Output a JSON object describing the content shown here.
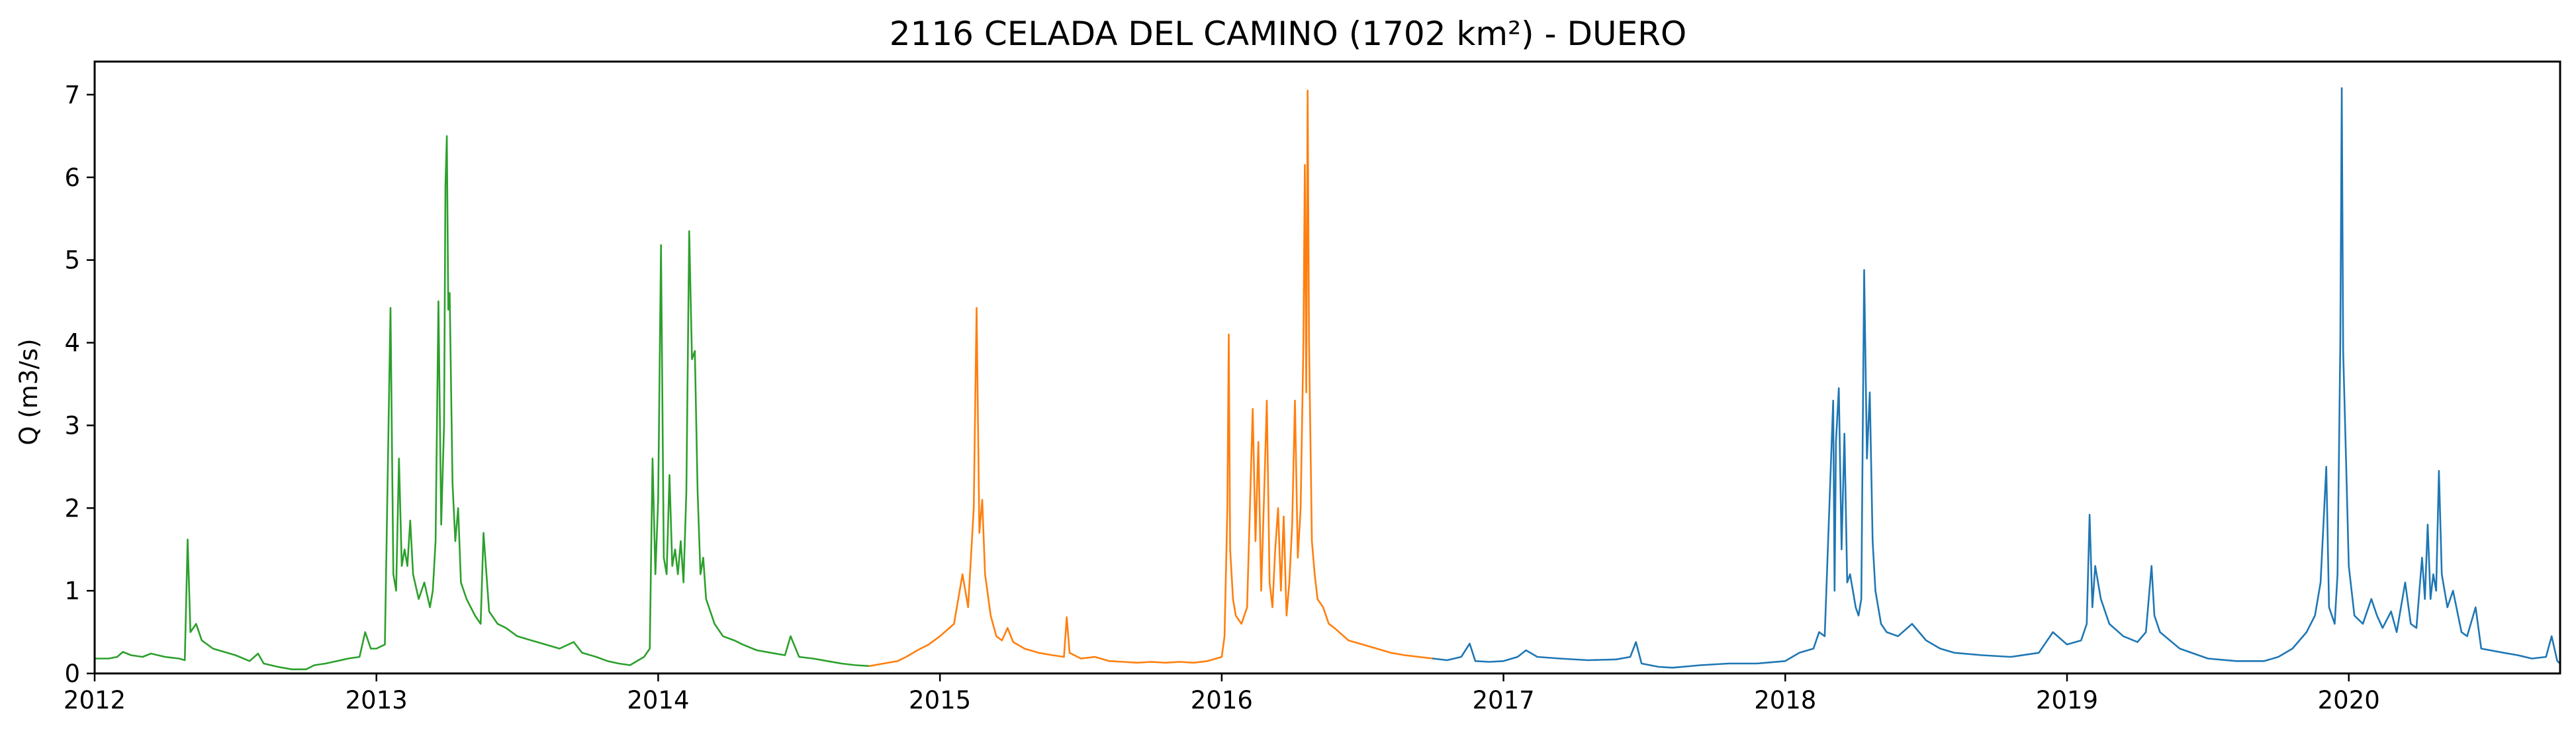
{
  "chart_data": {
    "type": "line",
    "title": "2116 CELADA DEL CAMINO (1702 km²) - DUERO",
    "xlabel": "",
    "ylabel": "Q (m3/s)",
    "xlim": [
      2012.0,
      2020.75
    ],
    "ylim": [
      0,
      7.4
    ],
    "x_ticks": [
      "2012",
      "2013",
      "2014",
      "2015",
      "2016",
      "2017",
      "2018",
      "2019",
      "2020"
    ],
    "y_ticks": [
      "0",
      "1",
      "2",
      "3",
      "4",
      "5",
      "6",
      "7"
    ],
    "grid": false,
    "legend": "none",
    "series": [
      {
        "color": "#2ca02c",
        "points": [
          [
            2012.0,
            0.18
          ],
          [
            2012.05,
            0.18
          ],
          [
            2012.08,
            0.2
          ],
          [
            2012.1,
            0.26
          ],
          [
            2012.13,
            0.22
          ],
          [
            2012.17,
            0.2
          ],
          [
            2012.2,
            0.24
          ],
          [
            2012.25,
            0.2
          ],
          [
            2012.3,
            0.18
          ],
          [
            2012.32,
            0.16
          ],
          [
            2012.33,
            1.62
          ],
          [
            2012.34,
            0.5
          ],
          [
            2012.36,
            0.6
          ],
          [
            2012.38,
            0.4
          ],
          [
            2012.42,
            0.3
          ],
          [
            2012.46,
            0.26
          ],
          [
            2012.5,
            0.22
          ],
          [
            2012.55,
            0.15
          ],
          [
            2012.58,
            0.24
          ],
          [
            2012.6,
            0.12
          ],
          [
            2012.65,
            0.08
          ],
          [
            2012.7,
            0.05
          ],
          [
            2012.75,
            0.05
          ],
          [
            2012.78,
            0.1
          ],
          [
            2012.82,
            0.12
          ],
          [
            2012.86,
            0.15
          ],
          [
            2012.9,
            0.18
          ],
          [
            2012.94,
            0.2
          ],
          [
            2012.96,
            0.5
          ],
          [
            2012.98,
            0.3
          ],
          [
            2013.0,
            0.3
          ],
          [
            2013.03,
            0.35
          ],
          [
            2013.05,
            4.42
          ],
          [
            2013.06,
            1.2
          ],
          [
            2013.07,
            1.0
          ],
          [
            2013.08,
            2.6
          ],
          [
            2013.09,
            1.3
          ],
          [
            2013.1,
            1.5
          ],
          [
            2013.11,
            1.3
          ],
          [
            2013.12,
            1.85
          ],
          [
            2013.13,
            1.2
          ],
          [
            2013.15,
            0.9
          ],
          [
            2013.17,
            1.1
          ],
          [
            2013.19,
            0.8
          ],
          [
            2013.2,
            1.0
          ],
          [
            2013.21,
            1.6
          ],
          [
            2013.22,
            4.5
          ],
          [
            2013.23,
            1.8
          ],
          [
            2013.24,
            3.0
          ],
          [
            2013.245,
            5.9
          ],
          [
            2013.25,
            6.5
          ],
          [
            2013.255,
            4.4
          ],
          [
            2013.26,
            4.6
          ],
          [
            2013.27,
            2.3
          ],
          [
            2013.28,
            1.6
          ],
          [
            2013.29,
            2.0
          ],
          [
            2013.3,
            1.1
          ],
          [
            2013.32,
            0.9
          ],
          [
            2013.35,
            0.7
          ],
          [
            2013.37,
            0.6
          ],
          [
            2013.38,
            1.7
          ],
          [
            2013.4,
            0.75
          ],
          [
            2013.43,
            0.6
          ],
          [
            2013.46,
            0.55
          ],
          [
            2013.5,
            0.45
          ],
          [
            2013.55,
            0.4
          ],
          [
            2013.6,
            0.35
          ],
          [
            2013.65,
            0.3
          ],
          [
            2013.7,
            0.38
          ],
          [
            2013.73,
            0.25
          ],
          [
            2013.78,
            0.2
          ],
          [
            2013.82,
            0.15
          ],
          [
            2013.86,
            0.12
          ],
          [
            2013.9,
            0.1
          ],
          [
            2013.95,
            0.2
          ],
          [
            2013.97,
            0.3
          ],
          [
            2013.98,
            2.6
          ],
          [
            2013.99,
            1.2
          ],
          [
            2014.0,
            2.1
          ],
          [
            2014.01,
            5.18
          ],
          [
            2014.02,
            1.4
          ],
          [
            2014.03,
            1.2
          ],
          [
            2014.04,
            2.4
          ],
          [
            2014.05,
            1.3
          ],
          [
            2014.06,
            1.5
          ],
          [
            2014.07,
            1.2
          ],
          [
            2014.08,
            1.6
          ],
          [
            2014.09,
            1.1
          ],
          [
            2014.1,
            2.2
          ],
          [
            2014.11,
            5.35
          ],
          [
            2014.12,
            3.8
          ],
          [
            2014.13,
            3.9
          ],
          [
            2014.14,
            2.2
          ],
          [
            2014.15,
            1.2
          ],
          [
            2014.16,
            1.4
          ],
          [
            2014.17,
            0.9
          ],
          [
            2014.2,
            0.6
          ],
          [
            2014.23,
            0.45
          ],
          [
            2014.27,
            0.4
          ],
          [
            2014.3,
            0.35
          ],
          [
            2014.35,
            0.28
          ],
          [
            2014.4,
            0.25
          ],
          [
            2014.45,
            0.22
          ],
          [
            2014.47,
            0.45
          ],
          [
            2014.5,
            0.2
          ],
          [
            2014.55,
            0.18
          ],
          [
            2014.6,
            0.15
          ],
          [
            2014.65,
            0.12
          ],
          [
            2014.7,
            0.1
          ],
          [
            2014.75,
            0.09
          ]
        ]
      },
      {
        "color": "#ff7f0e",
        "points": [
          [
            2014.75,
            0.09
          ],
          [
            2014.8,
            0.12
          ],
          [
            2014.85,
            0.15
          ],
          [
            2014.88,
            0.2
          ],
          [
            2014.92,
            0.28
          ],
          [
            2014.96,
            0.35
          ],
          [
            2015.0,
            0.45
          ],
          [
            2015.05,
            0.6
          ],
          [
            2015.08,
            1.2
          ],
          [
            2015.1,
            0.8
          ],
          [
            2015.12,
            2.0
          ],
          [
            2015.13,
            4.42
          ],
          [
            2015.14,
            1.7
          ],
          [
            2015.15,
            2.1
          ],
          [
            2015.16,
            1.2
          ],
          [
            2015.18,
            0.7
          ],
          [
            2015.2,
            0.45
          ],
          [
            2015.22,
            0.4
          ],
          [
            2015.24,
            0.55
          ],
          [
            2015.26,
            0.38
          ],
          [
            2015.3,
            0.3
          ],
          [
            2015.35,
            0.25
          ],
          [
            2015.4,
            0.22
          ],
          [
            2015.44,
            0.2
          ],
          [
            2015.45,
            0.68
          ],
          [
            2015.46,
            0.25
          ],
          [
            2015.5,
            0.18
          ],
          [
            2015.55,
            0.2
          ],
          [
            2015.6,
            0.15
          ],
          [
            2015.65,
            0.14
          ],
          [
            2015.7,
            0.13
          ],
          [
            2015.75,
            0.14
          ],
          [
            2015.8,
            0.13
          ],
          [
            2015.85,
            0.14
          ],
          [
            2015.9,
            0.13
          ],
          [
            2015.95,
            0.15
          ],
          [
            2016.0,
            0.2
          ],
          [
            2016.01,
            0.45
          ],
          [
            2016.02,
            2.0
          ],
          [
            2016.025,
            4.1
          ],
          [
            2016.03,
            1.5
          ],
          [
            2016.04,
            0.9
          ],
          [
            2016.05,
            0.7
          ],
          [
            2016.07,
            0.6
          ],
          [
            2016.09,
            0.8
          ],
          [
            2016.11,
            3.2
          ],
          [
            2016.12,
            1.6
          ],
          [
            2016.13,
            2.8
          ],
          [
            2016.14,
            1.0
          ],
          [
            2016.15,
            2.1
          ],
          [
            2016.16,
            3.3
          ],
          [
            2016.17,
            1.1
          ],
          [
            2016.18,
            0.8
          ],
          [
            2016.19,
            1.5
          ],
          [
            2016.2,
            2.0
          ],
          [
            2016.21,
            1.0
          ],
          [
            2016.22,
            1.9
          ],
          [
            2016.23,
            0.7
          ],
          [
            2016.24,
            1.1
          ],
          [
            2016.25,
            1.8
          ],
          [
            2016.26,
            3.3
          ],
          [
            2016.27,
            1.4
          ],
          [
            2016.28,
            2.0
          ],
          [
            2016.29,
            4.0
          ],
          [
            2016.295,
            6.15
          ],
          [
            2016.3,
            3.4
          ],
          [
            2016.305,
            7.05
          ],
          [
            2016.31,
            4.0
          ],
          [
            2016.32,
            1.6
          ],
          [
            2016.33,
            1.2
          ],
          [
            2016.34,
            0.9
          ],
          [
            2016.36,
            0.8
          ],
          [
            2016.38,
            0.6
          ],
          [
            2016.4,
            0.55
          ],
          [
            2016.45,
            0.4
          ],
          [
            2016.5,
            0.35
          ],
          [
            2016.55,
            0.3
          ],
          [
            2016.6,
            0.25
          ],
          [
            2016.65,
            0.22
          ],
          [
            2016.7,
            0.2
          ],
          [
            2016.75,
            0.18
          ]
        ]
      },
      {
        "color": "#1f77b4",
        "points": [
          [
            2016.75,
            0.18
          ],
          [
            2016.8,
            0.16
          ],
          [
            2016.85,
            0.2
          ],
          [
            2016.88,
            0.36
          ],
          [
            2016.9,
            0.15
          ],
          [
            2016.95,
            0.14
          ],
          [
            2017.0,
            0.15
          ],
          [
            2017.05,
            0.2
          ],
          [
            2017.08,
            0.28
          ],
          [
            2017.12,
            0.2
          ],
          [
            2017.2,
            0.18
          ],
          [
            2017.3,
            0.16
          ],
          [
            2017.4,
            0.17
          ],
          [
            2017.45,
            0.2
          ],
          [
            2017.47,
            0.38
          ],
          [
            2017.49,
            0.12
          ],
          [
            2017.55,
            0.08
          ],
          [
            2017.6,
            0.07
          ],
          [
            2017.7,
            0.1
          ],
          [
            2017.8,
            0.12
          ],
          [
            2017.9,
            0.12
          ],
          [
            2018.0,
            0.15
          ],
          [
            2018.05,
            0.25
          ],
          [
            2018.1,
            0.3
          ],
          [
            2018.12,
            0.5
          ],
          [
            2018.14,
            0.45
          ],
          [
            2018.17,
            3.3
          ],
          [
            2018.175,
            1.0
          ],
          [
            2018.18,
            2.8
          ],
          [
            2018.19,
            3.45
          ],
          [
            2018.2,
            1.5
          ],
          [
            2018.21,
            2.9
          ],
          [
            2018.22,
            1.1
          ],
          [
            2018.23,
            1.2
          ],
          [
            2018.24,
            1.0
          ],
          [
            2018.25,
            0.8
          ],
          [
            2018.26,
            0.7
          ],
          [
            2018.27,
            0.9
          ],
          [
            2018.28,
            4.88
          ],
          [
            2018.29,
            2.6
          ],
          [
            2018.3,
            3.4
          ],
          [
            2018.31,
            1.6
          ],
          [
            2018.32,
            1.0
          ],
          [
            2018.34,
            0.6
          ],
          [
            2018.36,
            0.5
          ],
          [
            2018.4,
            0.45
          ],
          [
            2018.45,
            0.6
          ],
          [
            2018.5,
            0.4
          ],
          [
            2018.55,
            0.3
          ],
          [
            2018.6,
            0.25
          ],
          [
            2018.7,
            0.22
          ],
          [
            2018.8,
            0.2
          ],
          [
            2018.9,
            0.25
          ],
          [
            2018.95,
            0.5
          ],
          [
            2019.0,
            0.35
          ],
          [
            2019.05,
            0.4
          ],
          [
            2019.07,
            0.6
          ],
          [
            2019.08,
            1.92
          ],
          [
            2019.09,
            0.8
          ],
          [
            2019.1,
            1.3
          ],
          [
            2019.12,
            0.9
          ],
          [
            2019.15,
            0.6
          ],
          [
            2019.2,
            0.45
          ],
          [
            2019.25,
            0.38
          ],
          [
            2019.28,
            0.5
          ],
          [
            2019.3,
            1.3
          ],
          [
            2019.31,
            0.7
          ],
          [
            2019.33,
            0.5
          ],
          [
            2019.4,
            0.3
          ],
          [
            2019.5,
            0.18
          ],
          [
            2019.6,
            0.15
          ],
          [
            2019.7,
            0.15
          ],
          [
            2019.75,
            0.2
          ],
          [
            2019.8,
            0.3
          ],
          [
            2019.85,
            0.5
          ],
          [
            2019.88,
            0.7
          ],
          [
            2019.9,
            1.1
          ],
          [
            2019.92,
            2.5
          ],
          [
            2019.93,
            0.8
          ],
          [
            2019.95,
            0.6
          ],
          [
            2019.96,
            1.2
          ],
          [
            2019.97,
            4.0
          ],
          [
            2019.975,
            7.08
          ],
          [
            2019.98,
            3.9
          ],
          [
            2019.99,
            2.6
          ],
          [
            2020.0,
            1.3
          ],
          [
            2020.02,
            0.7
          ],
          [
            2020.05,
            0.6
          ],
          [
            2020.08,
            0.9
          ],
          [
            2020.1,
            0.7
          ],
          [
            2020.12,
            0.55
          ],
          [
            2020.15,
            0.75
          ],
          [
            2020.17,
            0.5
          ],
          [
            2020.2,
            1.1
          ],
          [
            2020.22,
            0.6
          ],
          [
            2020.24,
            0.55
          ],
          [
            2020.26,
            1.4
          ],
          [
            2020.27,
            0.9
          ],
          [
            2020.28,
            1.8
          ],
          [
            2020.29,
            0.9
          ],
          [
            2020.3,
            1.2
          ],
          [
            2020.31,
            1.0
          ],
          [
            2020.32,
            2.45
          ],
          [
            2020.33,
            1.2
          ],
          [
            2020.35,
            0.8
          ],
          [
            2020.37,
            1.0
          ],
          [
            2020.4,
            0.5
          ],
          [
            2020.42,
            0.45
          ],
          [
            2020.45,
            0.8
          ],
          [
            2020.47,
            0.3
          ],
          [
            2020.55,
            0.25
          ],
          [
            2020.6,
            0.22
          ],
          [
            2020.65,
            0.18
          ],
          [
            2020.7,
            0.2
          ],
          [
            2020.72,
            0.45
          ],
          [
            2020.74,
            0.15
          ],
          [
            2020.75,
            0.12
          ]
        ]
      }
    ]
  }
}
